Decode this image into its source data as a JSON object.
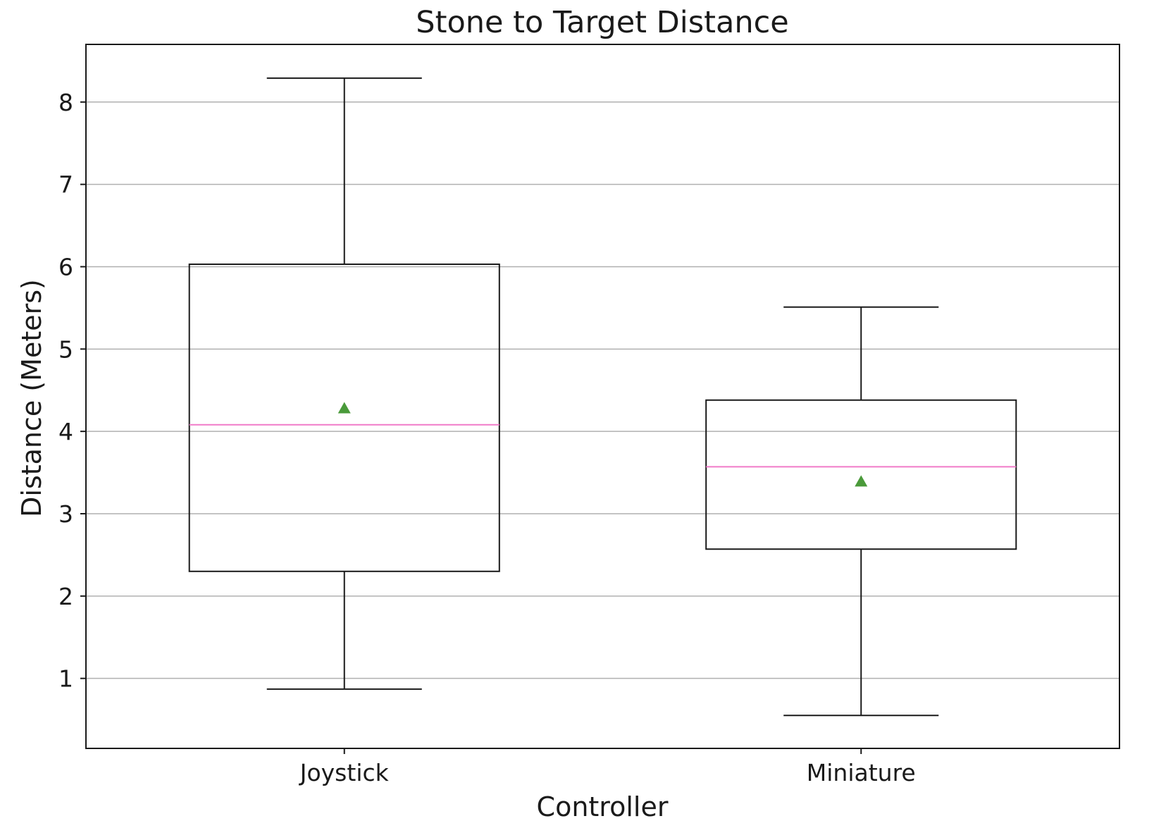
{
  "chart_data": {
    "type": "box",
    "title": "Stone to Target Distance",
    "xlabel": "Controller",
    "ylabel": "Distance (Meters)",
    "categories": [
      "Joystick",
      "Miniature"
    ],
    "boxes": [
      {
        "category": "Joystick",
        "whisker_low": 0.87,
        "q1": 2.3,
        "median": 4.08,
        "q3": 6.03,
        "whisker_high": 8.29,
        "mean": 4.28
      },
      {
        "category": "Miniature",
        "whisker_low": 0.55,
        "q1": 2.57,
        "median": 3.57,
        "q3": 4.38,
        "whisker_high": 5.51,
        "mean": 3.39
      }
    ],
    "ylim": [
      0.15,
      8.7
    ],
    "yticks": [
      1,
      2,
      3,
      4,
      5,
      6,
      7,
      8
    ],
    "grid": "horizontal",
    "colors": {
      "box": "#1a1a1a",
      "median": "#f07ac8",
      "mean": "#4a9a3a",
      "grid": "#b0b0b0"
    }
  }
}
